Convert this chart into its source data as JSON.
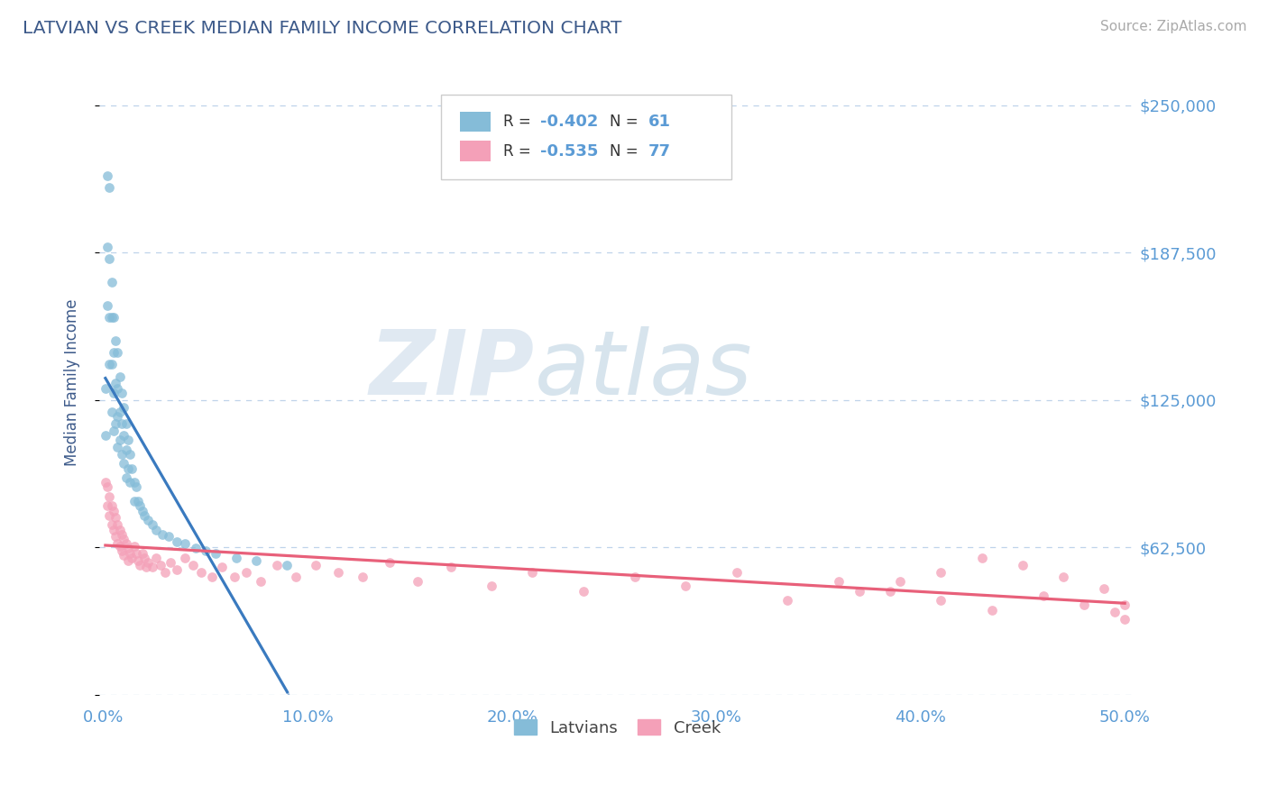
{
  "title": "LATVIAN VS CREEK MEDIAN FAMILY INCOME CORRELATION CHART",
  "source": "Source: ZipAtlas.com",
  "ylabel": "Median Family Income",
  "xlim": [
    -0.002,
    0.505
  ],
  "ylim": [
    10000,
    265000
  ],
  "yticks": [
    0,
    62500,
    125000,
    187500,
    250000
  ],
  "ytick_labels": [
    "",
    "$62,500",
    "$125,000",
    "$187,500",
    "$250,000"
  ],
  "xticks": [
    0.0,
    0.1,
    0.2,
    0.3,
    0.4,
    0.5
  ],
  "xtick_labels": [
    "0.0%",
    "10.0%",
    "20.0%",
    "30.0%",
    "40.0%",
    "50.0%"
  ],
  "latvian_scatter_color": "#85bcd8",
  "creek_scatter_color": "#f4a0b8",
  "latvian_line_color": "#3a7abf",
  "creek_line_color": "#e8607a",
  "background_color": "#ffffff",
  "grid_color": "#b8cfe8",
  "title_color": "#3d5a8a",
  "axis_label_color": "#3d5a8a",
  "tick_color": "#5b9bd5",
  "r_latvian": -0.402,
  "n_latvian": 61,
  "r_creek": -0.535,
  "n_creek": 77,
  "legend_labels_bottom": [
    "Latvians",
    "Creek"
  ],
  "watermark_zip": "ZIP",
  "watermark_atlas": "atlas",
  "latvian_x": [
    0.001,
    0.001,
    0.002,
    0.002,
    0.002,
    0.003,
    0.003,
    0.003,
    0.003,
    0.004,
    0.004,
    0.004,
    0.004,
    0.005,
    0.005,
    0.005,
    0.005,
    0.006,
    0.006,
    0.006,
    0.007,
    0.007,
    0.007,
    0.007,
    0.008,
    0.008,
    0.008,
    0.009,
    0.009,
    0.009,
    0.01,
    0.01,
    0.01,
    0.011,
    0.011,
    0.011,
    0.012,
    0.012,
    0.013,
    0.013,
    0.014,
    0.015,
    0.015,
    0.016,
    0.017,
    0.018,
    0.019,
    0.02,
    0.022,
    0.024,
    0.026,
    0.029,
    0.032,
    0.036,
    0.04,
    0.045,
    0.05,
    0.055,
    0.065,
    0.075,
    0.09
  ],
  "latvian_y": [
    130000,
    110000,
    220000,
    190000,
    165000,
    215000,
    185000,
    160000,
    140000,
    175000,
    160000,
    140000,
    120000,
    160000,
    145000,
    128000,
    112000,
    150000,
    132000,
    115000,
    145000,
    130000,
    118000,
    105000,
    135000,
    120000,
    108000,
    128000,
    115000,
    102000,
    122000,
    110000,
    98000,
    115000,
    104000,
    92000,
    108000,
    96000,
    102000,
    90000,
    96000,
    90000,
    82000,
    88000,
    82000,
    80000,
    78000,
    76000,
    74000,
    72000,
    70000,
    68000,
    67000,
    65000,
    64000,
    62000,
    61000,
    60000,
    58000,
    57000,
    55000
  ],
  "creek_x": [
    0.001,
    0.002,
    0.002,
    0.003,
    0.003,
    0.004,
    0.004,
    0.005,
    0.005,
    0.006,
    0.006,
    0.007,
    0.007,
    0.008,
    0.008,
    0.009,
    0.009,
    0.01,
    0.01,
    0.011,
    0.012,
    0.012,
    0.013,
    0.014,
    0.015,
    0.016,
    0.017,
    0.018,
    0.019,
    0.02,
    0.021,
    0.022,
    0.024,
    0.026,
    0.028,
    0.03,
    0.033,
    0.036,
    0.04,
    0.044,
    0.048,
    0.053,
    0.058,
    0.064,
    0.07,
    0.077,
    0.085,
    0.094,
    0.104,
    0.115,
    0.127,
    0.14,
    0.154,
    0.17,
    0.19,
    0.21,
    0.235,
    0.26,
    0.285,
    0.31,
    0.335,
    0.36,
    0.385,
    0.41,
    0.435,
    0.46,
    0.48,
    0.495,
    0.5,
    0.5,
    0.49,
    0.47,
    0.45,
    0.43,
    0.41,
    0.39,
    0.37
  ],
  "creek_y": [
    90000,
    88000,
    80000,
    84000,
    76000,
    80000,
    72000,
    78000,
    70000,
    75000,
    67000,
    72000,
    64000,
    70000,
    63000,
    68000,
    61000,
    66000,
    59000,
    64000,
    62000,
    57000,
    60000,
    58000,
    63000,
    60000,
    57000,
    55000,
    60000,
    58000,
    54000,
    56000,
    54000,
    58000,
    55000,
    52000,
    56000,
    53000,
    58000,
    55000,
    52000,
    50000,
    54000,
    50000,
    52000,
    48000,
    55000,
    50000,
    55000,
    52000,
    50000,
    56000,
    48000,
    54000,
    46000,
    52000,
    44000,
    50000,
    46000,
    52000,
    40000,
    48000,
    44000,
    40000,
    36000,
    42000,
    38000,
    35000,
    32000,
    38000,
    45000,
    50000,
    55000,
    58000,
    52000,
    48000,
    44000
  ]
}
